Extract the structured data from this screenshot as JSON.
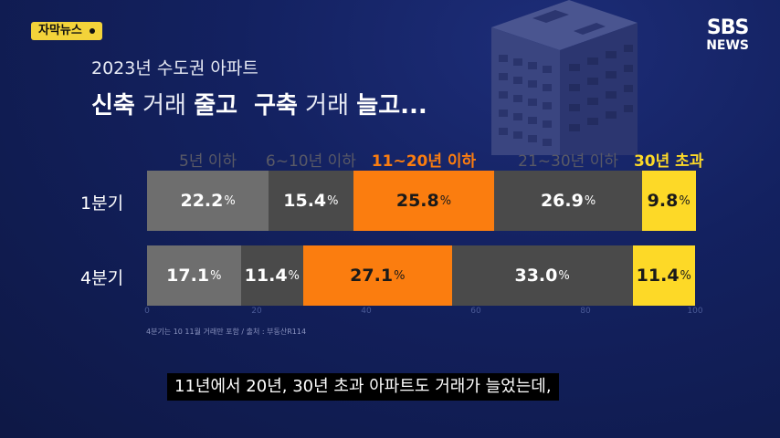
{
  "badge": {
    "label": "자막뉴스"
  },
  "logo": {
    "line1": "SBS",
    "line2": "NEWS"
  },
  "header": {
    "subtitle": "2023년 수도권 아파트",
    "title_part1_bold": "신축",
    "title_part1_light": " 거래 ",
    "title_part2_bold": "줄고",
    "title_part3_bold": "구축",
    "title_part3_light": " 거래 ",
    "title_part4_bold": "늘고..."
  },
  "colors": {
    "background": "#0f1a4a",
    "seg_light_gray": "#6e6e6e",
    "seg_dark_gray": "#4a4a4a",
    "seg_orange": "#fb7d0f",
    "seg_yellow": "#fdd927",
    "label_gray": "#5a5a66",
    "label_orange": "#fb7d0f",
    "label_yellow": "#fdd927"
  },
  "chart_data": {
    "type": "bar",
    "orientation": "horizontal-stacked-100",
    "categories": [
      "1분기",
      "4분기"
    ],
    "series": [
      {
        "name": "5년 이하",
        "values": [
          22.2,
          17.1
        ],
        "color": "#6e6e6e",
        "label_color": "#5a5a66"
      },
      {
        "name": "6~10년 이하",
        "values": [
          15.4,
          11.4
        ],
        "color": "#4a4a4a",
        "label_color": "#5a5a66"
      },
      {
        "name": "11~20년 이하",
        "values": [
          25.8,
          27.1
        ],
        "color": "#fb7d0f",
        "label_color": "#fb7d0f"
      },
      {
        "name": "21~30년 이하",
        "values": [
          26.9,
          33.0
        ],
        "color": "#4a4a4a",
        "label_color": "#5a5a66"
      },
      {
        "name": "30년 초과",
        "values": [
          9.8,
          11.4
        ],
        "color": "#fdd927",
        "label_color": "#fdd927"
      }
    ],
    "value_labels": [
      [
        "22.2",
        "15.4",
        "25.8",
        "26.9",
        "9.8"
      ],
      [
        "17.1",
        "11.4",
        "27.1",
        "33.0",
        "11.4"
      ]
    ],
    "value_suffix": "%",
    "xlim": [
      0,
      100
    ],
    "xticks": [
      "0",
      "20",
      "40",
      "60",
      "80",
      "100"
    ],
    "legend_position": "top",
    "grid": false
  },
  "footnote": "4분기는 10 11월 거래만 포함 / 출처 : 부동산R114",
  "caption": "11년에서 20년, 30년 초과 아파트도 거래가 늘었는데,"
}
